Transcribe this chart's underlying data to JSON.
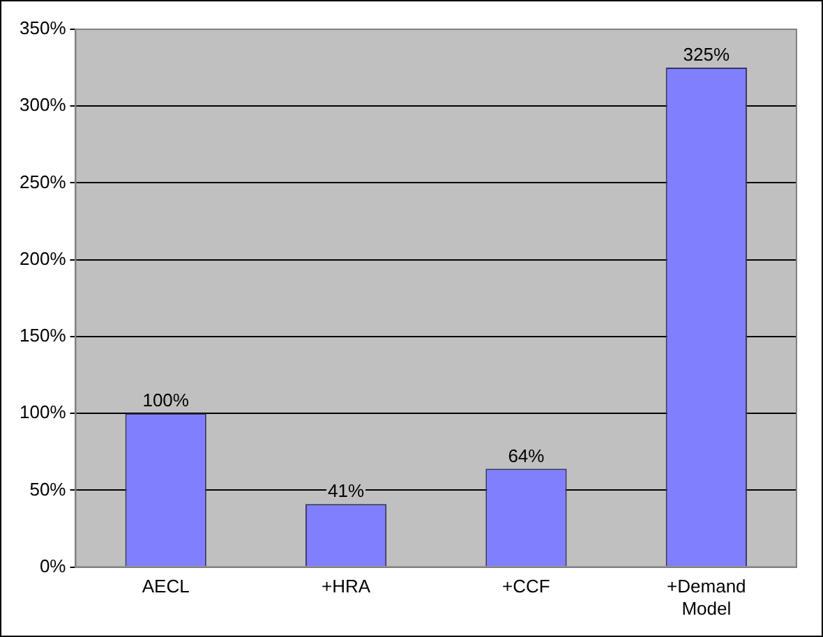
{
  "chart_data": {
    "type": "bar",
    "categories": [
      "AECL",
      "+HRA",
      "+CCF",
      "+Demand Model"
    ],
    "values": [
      100,
      41,
      64,
      325
    ],
    "color": "#8080ff",
    "value_labels": [
      "100%",
      "41%",
      "64%",
      "325%"
    ],
    "ylim": [
      0,
      350
    ],
    "yticks": [
      {
        "value": 0,
        "label": "0%"
      },
      {
        "value": 50,
        "label": "50%"
      },
      {
        "value": 100,
        "label": "100%"
      },
      {
        "value": 150,
        "label": "150%"
      },
      {
        "value": 200,
        "label": "200%"
      },
      {
        "value": 250,
        "label": "250%"
      },
      {
        "value": 300,
        "label": "300%"
      },
      {
        "value": 350,
        "label": "350%"
      }
    ],
    "grid": "y",
    "legend": false
  }
}
